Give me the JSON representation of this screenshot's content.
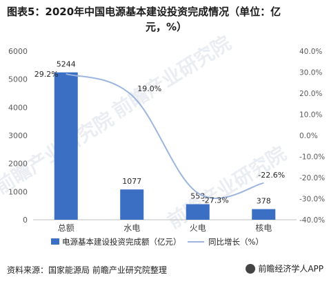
{
  "title_line1": "图表5：2020年中国电源基本建设投资完成情况（单位：亿",
  "title_line2": "元，%）",
  "source": "资料来源：国家能源局 前瞻产业研究院整理",
  "brand": "前瞻经济学人APP",
  "watermark": "前瞻产业研究院",
  "chart_data": {
    "type": "bar",
    "categories": [
      "总额",
      "水电",
      "火电",
      "核电"
    ],
    "series": [
      {
        "name": "电源基本建设投资完成额（亿元）",
        "type": "bar",
        "axis": "left",
        "values": [
          5244,
          1077,
          553,
          378
        ],
        "color": "#3a6fc4"
      },
      {
        "name": "同比增长（%）",
        "type": "line",
        "axis": "right",
        "values": [
          29.2,
          19.0,
          -27.3,
          -22.6
        ],
        "color": "#9bb5de"
      }
    ],
    "bar_labels": [
      "5244",
      "1077",
      "553",
      "378"
    ],
    "line_labels": [
      "29.2%",
      "19.0%",
      "-27.3%",
      "-22.6%"
    ],
    "y_left": {
      "min": 0,
      "max": 6000,
      "ticks": [
        "0",
        "1000",
        "2000",
        "3000",
        "4000",
        "5000",
        "6000"
      ]
    },
    "y_right": {
      "min": -40,
      "max": 40,
      "ticks": [
        "-40.0%",
        "-30.0%",
        "-20.0%",
        "-10.0%",
        "0.0%",
        "10.0%",
        "20.0%",
        "30.0%",
        "40.0%"
      ]
    },
    "legend_position": "bottom",
    "grid": false
  }
}
